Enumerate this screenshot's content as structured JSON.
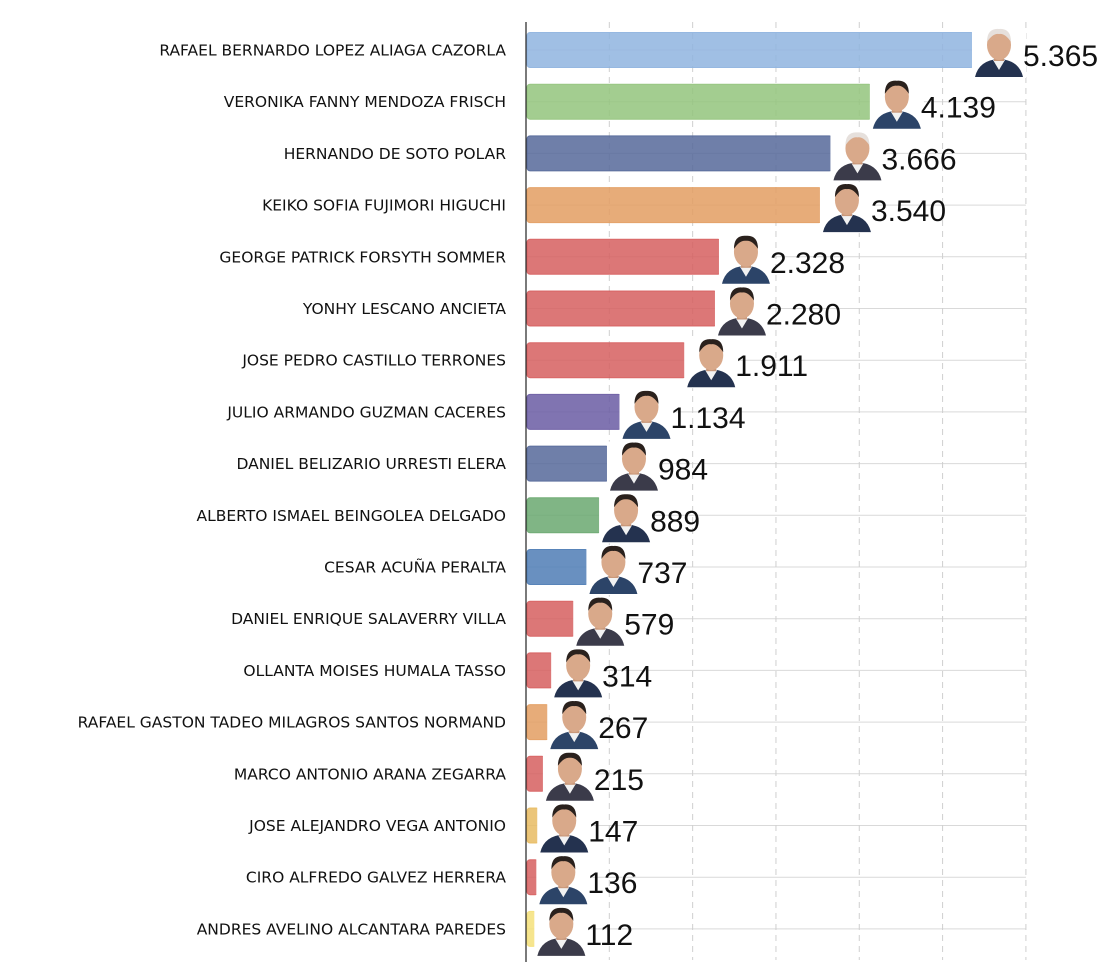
{
  "chart_data": {
    "type": "bar",
    "orientation": "horizontal",
    "title": "",
    "xlabel": "",
    "ylabel": "",
    "xlim": [
      0,
      6000
    ],
    "grid": true,
    "grid_lines": [
      1000,
      2000,
      3000,
      4000,
      5000,
      6000
    ],
    "legend": "none",
    "categories": [
      "RAFAEL BERNARDO LOPEZ ALIAGA CAZORLA",
      "VERONIKA FANNY MENDOZA FRISCH",
      "HERNANDO DE SOTO POLAR",
      "KEIKO SOFIA FUJIMORI HIGUCHI",
      "GEORGE PATRICK FORSYTH SOMMER",
      "YONHY LESCANO ANCIETA",
      "JOSE PEDRO CASTILLO TERRONES",
      "JULIO ARMANDO GUZMAN CACERES",
      "DANIEL BELIZARIO URRESTI ELERA",
      "ALBERTO ISMAEL BEINGOLEA DELGADO",
      "CESAR ACUÑA PERALTA",
      "DANIEL ENRIQUE SALAVERRY VILLA",
      "OLLANTA MOISES HUMALA TASSO",
      "RAFAEL GASTON TADEO MILAGROS SANTOS NORMAND",
      "MARCO ANTONIO ARANA ZEGARRA",
      "JOSE ALEJANDRO VEGA ANTONIO",
      "CIRO ALFREDO GALVEZ HERRERA",
      "ANDRES AVELINO ALCANTARA PAREDES"
    ],
    "values": [
      5365,
      4139,
      3666,
      3540,
      2328,
      2280,
      1911,
      1134,
      984,
      889,
      737,
      579,
      314,
      267,
      215,
      147,
      136,
      112
    ],
    "value_labels": [
      "5.365",
      "4.139",
      "3.666",
      "3.540",
      "2.328",
      "2.280",
      "1.911",
      "1.134",
      "984",
      "889",
      "737",
      "579",
      "314",
      "267",
      "215",
      "147",
      "136",
      "112"
    ],
    "colors": [
      "#8fb4df",
      "#93c47d",
      "#56699a",
      "#e39e62",
      "#d65f5f",
      "#d65f5f",
      "#d65f5f",
      "#6a5ca3",
      "#56699a",
      "#6aa870",
      "#4f7db5",
      "#d65f5f",
      "#d65f5f",
      "#e39e62",
      "#d65f5f",
      "#e8bb61",
      "#d65f5f",
      "#f4e07a"
    ],
    "images": "candidate-portrait"
  }
}
